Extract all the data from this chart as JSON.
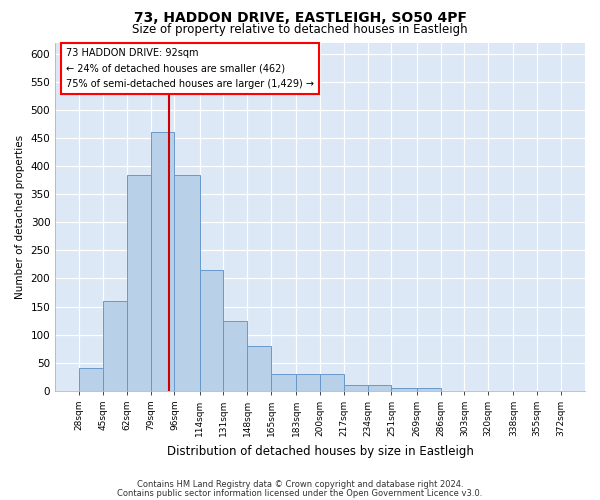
{
  "title1": "73, HADDON DRIVE, EASTLEIGH, SO50 4PF",
  "title2": "Size of property relative to detached houses in Eastleigh",
  "xlabel": "Distribution of detached houses by size in Eastleigh",
  "ylabel": "Number of detached properties",
  "annotation_line1": "73 HADDON DRIVE: 92sqm",
  "annotation_line2": "← 24% of detached houses are smaller (462)",
  "annotation_line3": "75% of semi-detached houses are larger (1,429) →",
  "property_size": 92,
  "bin_edges": [
    28,
    45,
    62,
    79,
    96,
    114,
    131,
    148,
    165,
    183,
    200,
    217,
    234,
    251,
    269,
    286,
    303,
    320,
    338,
    355,
    372
  ],
  "bar_heights": [
    40,
    160,
    385,
    460,
    385,
    215,
    125,
    80,
    30,
    30,
    30,
    10,
    10,
    5,
    5,
    0,
    0,
    0,
    0,
    0
  ],
  "bar_color": "#b8d0e8",
  "bar_edge_color": "#6699cc",
  "vline_color": "#cc0000",
  "background_color": "#dce8f5",
  "ylim": [
    0,
    620
  ],
  "yticks": [
    0,
    50,
    100,
    150,
    200,
    250,
    300,
    350,
    400,
    450,
    500,
    550,
    600
  ],
  "footer1": "Contains HM Land Registry data © Crown copyright and database right 2024.",
  "footer2": "Contains public sector information licensed under the Open Government Licence v3.0."
}
